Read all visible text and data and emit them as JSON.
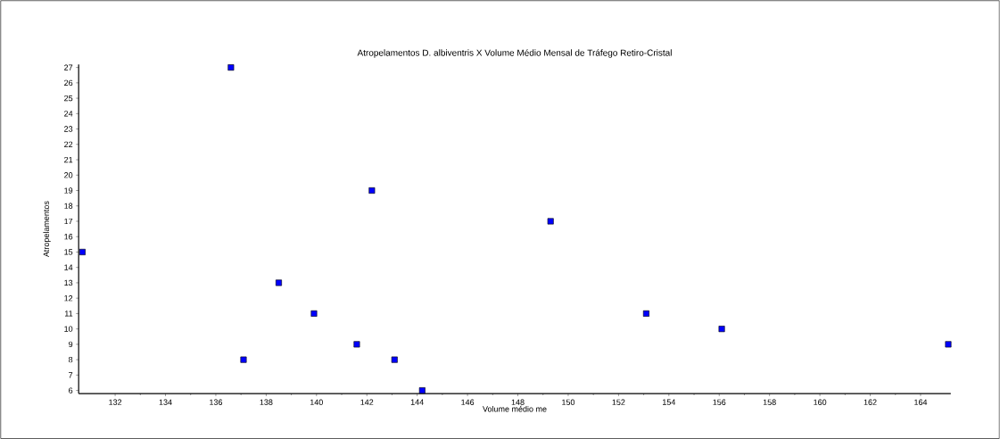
{
  "chart_data": {
    "type": "scatter",
    "title": "Atropelamentos D. albiventris X Volume Médio Mensal de Tráfego  Retiro-Cristal",
    "xlabel": "Volume médio me",
    "ylabel": "Atropelamentos",
    "x": [
      130.7,
      136.6,
      137.1,
      138.5,
      139.9,
      141.6,
      142.2,
      143.1,
      144.2,
      149.3,
      153.1,
      156.1,
      165.1
    ],
    "values": [
      15,
      27,
      8,
      13,
      11,
      9,
      19,
      8,
      6,
      17,
      11,
      10,
      9
    ],
    "color": "#0000ff",
    "marker": "square",
    "xlim": [
      130.55,
      165.2
    ],
    "ylim": [
      5.8,
      27.2
    ],
    "xticks": [
      132,
      134,
      136,
      138,
      140,
      142,
      144,
      146,
      148,
      150,
      152,
      154,
      156,
      158,
      160,
      162,
      164
    ],
    "yticks": [
      6,
      7,
      8,
      9,
      10,
      11,
      12,
      13,
      14,
      15,
      16,
      17,
      18,
      19,
      20,
      21,
      22,
      23,
      24,
      25,
      26,
      27
    ],
    "tick_labels": "xy"
  }
}
